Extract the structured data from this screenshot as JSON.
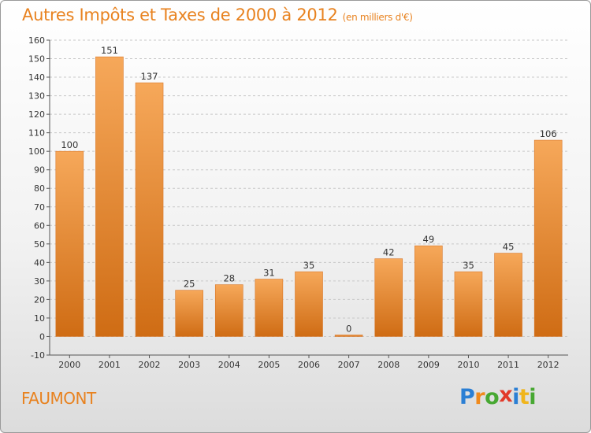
{
  "header": {
    "title": "Autres Impôts et Taxes de 2000 à 2012",
    "subtitle": "(en milliers d'€)"
  },
  "footer": {
    "place": "FAUMONT",
    "logo_letters": [
      {
        "ch": "P",
        "color": "#2b7fd4"
      },
      {
        "ch": "r",
        "color": "#f08a1c"
      },
      {
        "ch": "o",
        "color": "#47a832"
      },
      {
        "ch": "x",
        "color": "#e23a2a"
      },
      {
        "ch": "i",
        "color": "#2b7fd4"
      },
      {
        "ch": "t",
        "color": "#f0b51c"
      },
      {
        "ch": "i",
        "color": "#47a832"
      }
    ]
  },
  "colors": {
    "accent": "#e8821f",
    "bar_light": "#f6a85a",
    "bar_dark": "#cf6c14",
    "grid": "#c8c8c8",
    "axis": "#555555"
  },
  "chart_data": {
    "type": "bar",
    "title": "Autres Impôts et Taxes de 2000 à 2012",
    "subtitle": "(en milliers d'€)",
    "categories": [
      "2000",
      "2001",
      "2002",
      "2003",
      "2004",
      "2005",
      "2006",
      "2007",
      "2008",
      "2009",
      "2010",
      "2011",
      "2012"
    ],
    "values": [
      100,
      151,
      137,
      25,
      28,
      31,
      35,
      0,
      42,
      49,
      35,
      45,
      106
    ],
    "ylim": [
      -10,
      160
    ],
    "yticks": [
      -10,
      0,
      10,
      20,
      30,
      40,
      50,
      60,
      70,
      80,
      90,
      100,
      110,
      120,
      130,
      140,
      150,
      160
    ],
    "grid": true,
    "legend": "none"
  }
}
